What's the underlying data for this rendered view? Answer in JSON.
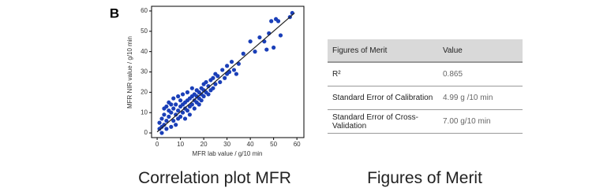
{
  "panel_label": "B",
  "chart_data": {
    "type": "scatter",
    "x_label": "MFR lab value / g/10 min",
    "y_label": "MFR NIR value / g/10 min",
    "color": "#1a3fb8",
    "axis_label_color": "#c0392b",
    "x": [
      1,
      1,
      2,
      2,
      2,
      3,
      3,
      3,
      4,
      4,
      4,
      5,
      5,
      5,
      6,
      6,
      6,
      7,
      7,
      7,
      8,
      8,
      8,
      9,
      9,
      9,
      10,
      10,
      10,
      11,
      11,
      11,
      12,
      12,
      12,
      13,
      13,
      13,
      14,
      14,
      14,
      15,
      15,
      15,
      16,
      16,
      16,
      17,
      17,
      17,
      18,
      18,
      18,
      19,
      19,
      19,
      20,
      20,
      20,
      21,
      21,
      22,
      22,
      23,
      23,
      24,
      24,
      25,
      25,
      26,
      27,
      28,
      29,
      30,
      30,
      31,
      32,
      33,
      34,
      35,
      37,
      40,
      42,
      44,
      46,
      47,
      48,
      49,
      50,
      51,
      52,
      53,
      57,
      58
    ],
    "values": [
      2,
      5,
      0,
      7,
      3,
      9,
      4,
      12,
      6,
      13,
      2,
      8,
      11,
      15,
      3,
      10,
      14,
      12,
      6,
      17,
      9,
      14,
      4,
      11,
      18,
      7,
      13,
      8,
      16,
      14,
      10,
      19,
      7,
      15,
      12,
      16,
      11,
      20,
      13,
      17,
      9,
      18,
      14,
      22,
      12,
      19,
      16,
      15,
      21,
      18,
      20,
      14,
      17,
      22,
      16,
      19,
      18,
      24,
      21,
      20,
      25,
      19,
      23,
      26,
      21,
      22,
      27,
      24,
      29,
      28,
      25,
      31,
      27,
      33,
      29,
      30,
      35,
      31,
      29,
      34,
      39,
      45,
      40,
      47,
      45,
      41,
      49,
      55,
      42,
      56,
      55,
      48,
      57,
      59
    ],
    "fit": {
      "x": [
        0,
        59
      ],
      "y": [
        0.5,
        59
      ]
    },
    "xlim": [
      -2.4,
      63
    ],
    "ylim": [
      -2.3,
      62.3
    ],
    "xticks": [
      0,
      10,
      20,
      30,
      40,
      50,
      60
    ],
    "yticks": [
      0,
      10,
      20,
      30,
      40,
      50,
      60
    ]
  },
  "table": {
    "header": [
      "Figures of Merit",
      "Value"
    ],
    "rows": [
      [
        "R²",
        "0.865"
      ],
      [
        "Standard Error of Calibration",
        "4.99 g /10 min"
      ],
      [
        "Standard Error of Cross-Validation",
        "7.00 g/10 min"
      ]
    ]
  },
  "captions": [
    "Correlation plot MFR",
    "Figures of Merit"
  ]
}
